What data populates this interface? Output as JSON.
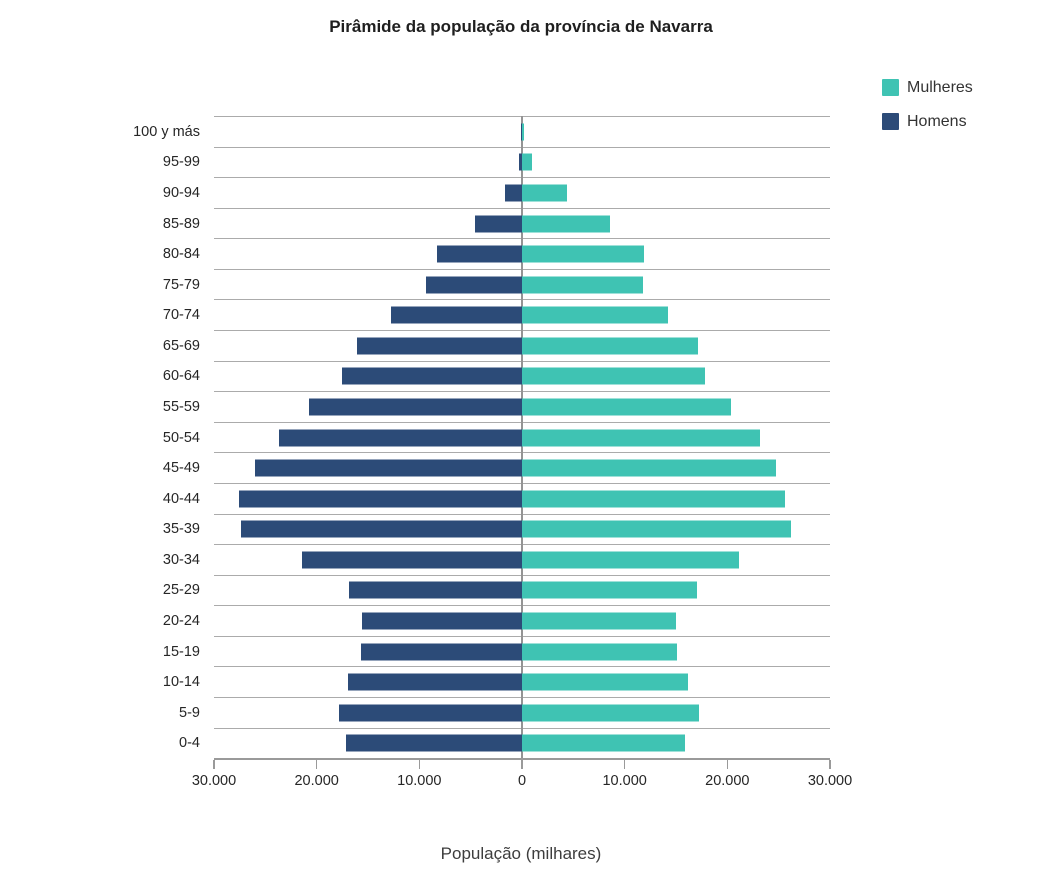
{
  "title": "Pirâmide da população da província de Navarra",
  "legend": [
    {
      "label": "Mulheres",
      "color": "#3fc3b3"
    },
    {
      "label": "Homens",
      "color": "#2c4b78"
    }
  ],
  "xlabel": "População (milhares)",
  "chart_data": {
    "type": "bar",
    "subtype": "population-pyramid",
    "title": "Pirâmide da população da província de Navarra",
    "xlabel": "População (milhares)",
    "categories": [
      "100 y más",
      "95-99",
      "90-94",
      "85-89",
      "80-84",
      "75-79",
      "70-74",
      "65-69",
      "60-64",
      "55-59",
      "50-54",
      "45-49",
      "40-44",
      "35-39",
      "30-34",
      "25-29",
      "20-24",
      "15-19",
      "10-14",
      "5-9",
      "0-4"
    ],
    "series": [
      {
        "name": "Homens",
        "side": "left",
        "color": "#2c4b78",
        "values": [
          100,
          300,
          1700,
          4600,
          8300,
          9400,
          12800,
          16100,
          17500,
          20800,
          23700,
          26000,
          27600,
          27400,
          21400,
          16900,
          15600,
          15700,
          17000,
          17800,
          17100
        ]
      },
      {
        "name": "Mulheres",
        "side": "right",
        "color": "#3fc3b3",
        "values": [
          200,
          1000,
          4400,
          8600,
          11900,
          11800,
          14200,
          17100,
          17800,
          20400,
          23200,
          24700,
          25600,
          26200,
          21100,
          17000,
          15000,
          15100,
          16200,
          17200,
          15900
        ]
      }
    ],
    "xlim": [
      -30000,
      30000
    ],
    "x_tick_interval": 10000,
    "x_tick_labels": [
      "30.000",
      "20.000",
      "10.000",
      "0",
      "10.000",
      "20.000",
      "30.000"
    ],
    "grid": "horizontal",
    "grid_color": "#ababab",
    "axis_color": "#9a9a9a",
    "legend_position": "top-right"
  }
}
